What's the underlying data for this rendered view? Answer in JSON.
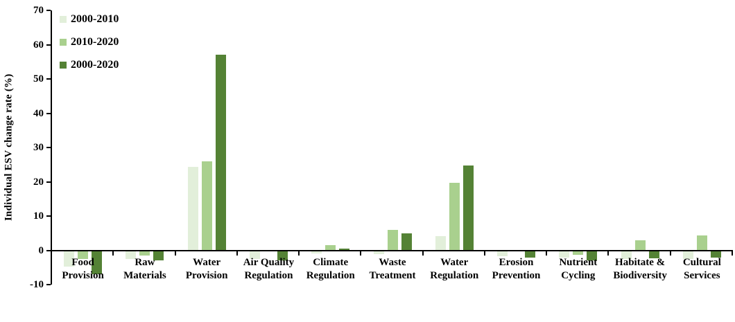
{
  "chart_data": {
    "type": "bar",
    "title": "",
    "xlabel": "",
    "ylabel": "Individual ESV change rate (%)",
    "ylim": [
      -10,
      70
    ],
    "yticks": [
      70,
      60,
      50,
      40,
      30,
      20,
      10,
      0,
      -10
    ],
    "grid": false,
    "legend_position": "top-left",
    "background_color": "#ffffff",
    "axis_color": "#000000",
    "categories": [
      "Food\nProvision",
      "Raw\nMaterials",
      "Water\nProvision",
      "Air Quality\nRegulation",
      "Climate\nRegulation",
      "Waste\nTreatment",
      "Water\nRegulation",
      "Erosion\nPrevention",
      "Nutrient\nCycling",
      "Habitate &\nBiodiversity",
      "Cultural\nServices"
    ],
    "series": [
      {
        "name": "2000-2010",
        "color": "#e2efda",
        "values": [
          -4.6,
          -2.4,
          24.3,
          -2.4,
          -0.8,
          -1.0,
          4.2,
          -1.5,
          -1.9,
          -2.3,
          -2.3
        ]
      },
      {
        "name": "2010-2020",
        "color": "#a9d08e",
        "values": [
          -2.3,
          -1.3,
          26.0,
          0,
          1.5,
          6.0,
          19.6,
          0,
          -1.1,
          2.9,
          4.3
        ]
      },
      {
        "name": "2000-2020",
        "color": "#548235",
        "values": [
          -6.8,
          -2.8,
          57.0,
          -2.8,
          0.6,
          4.9,
          24.7,
          -1.9,
          -2.8,
          -2.2,
          -2.0
        ]
      }
    ]
  }
}
